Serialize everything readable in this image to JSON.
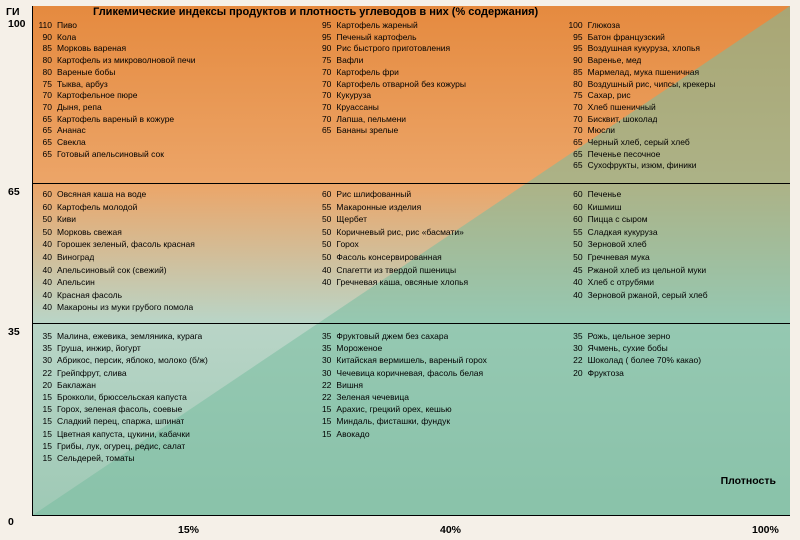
{
  "meta": {
    "title": "Гликемические индексы  продуктов и плотность углеводов   в них (% содержания)",
    "y_axis_label": "ГИ",
    "x_axis_label": "Плотность",
    "y_ticks": [
      {
        "v": "100",
        "top_pct": 0
      },
      {
        "v": "65",
        "top_pct": 34.8
      },
      {
        "v": "35",
        "top_pct": 62.3
      },
      {
        "v": "0",
        "top_pct": 100
      }
    ],
    "x_ticks": [
      {
        "v": "15%",
        "left_pct": 20
      },
      {
        "v": "40%",
        "left_pct": 55
      },
      {
        "v": "100%",
        "left_pct": 96
      }
    ],
    "hlines_pct": [
      34.8,
      62.3
    ],
    "colors": {
      "top_grad": [
        "#e58a3f",
        "#eca568"
      ],
      "mid_grad": [
        "#eca568",
        "#b9d5c7"
      ],
      "bot_grad": [
        "#b9d5c7",
        "#9ec9b5"
      ],
      "text": "#000000",
      "axis": "#000000",
      "diagonal_fill": "rgba(140,200,175,0.55)"
    },
    "fonts": {
      "title_pt": 11,
      "body_pt": 8.5,
      "axis_pt": 10.5,
      "family": "Arial"
    }
  },
  "columns": [
    {
      "a": [
        {
          "gi": "110",
          "nm": "Пиво"
        },
        {
          "gi": "90",
          "nm": "Кола"
        },
        {
          "gi": "85",
          "nm": "Морковь вареная"
        },
        {
          "gi": "80",
          "nm": "Картофель из микроволновой печи"
        },
        {
          "gi": "80",
          "nm": "Вареные бобы"
        },
        {
          "gi": "75",
          "nm": "Тыква, арбуз"
        },
        {
          "gi": "70",
          "nm": "Картофельное пюре"
        },
        {
          "gi": "70",
          "nm": "Дыня, репа"
        },
        {
          "gi": "65",
          "nm": "Картофель вареный в кожуре"
        },
        {
          "gi": "65",
          "nm": "Ананас"
        },
        {
          "gi": "65",
          "nm": "Свекла"
        },
        {
          "gi": "65",
          "nm": "Готовый апельсиновый сок"
        }
      ],
      "b": [
        {
          "gi": "60",
          "nm": "Овсяная каша на воде"
        },
        {
          "gi": "60",
          "nm": "Картофель молодой"
        },
        {
          "gi": "50",
          "nm": "Киви"
        },
        {
          "gi": "50",
          "nm": "Морковь свежая"
        },
        {
          "gi": "40",
          "nm": "Горошек зеленый, фасоль красная"
        },
        {
          "gi": "40",
          "nm": "Виноград"
        },
        {
          "gi": "40",
          "nm": "Апельсиновый сок (свежий)"
        },
        {
          "gi": "40",
          "nm": "Апельсин"
        },
        {
          "gi": "40",
          "nm": "Красная фасоль"
        },
        {
          "gi": "40",
          "nm": "Макароны из муки грубого помола"
        }
      ],
      "c": [
        {
          "gi": "35",
          "nm": "Малина, ежевика, земляника, курага"
        },
        {
          "gi": "35",
          "nm": "Груша, инжир, йогурт"
        },
        {
          "gi": "30",
          "nm": "Абрикос, персик, яблоко, молоко (б/ж)"
        },
        {
          "gi": "22",
          "nm": "Грейпфрут, слива"
        },
        {
          "gi": "20",
          "nm": "Баклажан"
        },
        {
          "gi": "15",
          "nm": "Брокколи, брюссельская капуста"
        },
        {
          "gi": "15",
          "nm": "Горох, зеленая фасоль, соевые"
        },
        {
          "gi": "15",
          "nm": "Сладкий перец, спаржа, шпинат"
        },
        {
          "gi": "15",
          "nm": "Цветная капуста, цукини, кабачки"
        },
        {
          "gi": "15",
          "nm": "Грибы, лук, огурец, редис, салат"
        },
        {
          "gi": "15",
          "nm": "Сельдерей, томаты"
        }
      ]
    },
    {
      "a": [
        {
          "gi": "",
          "nm": ""
        },
        {
          "gi": "95",
          "nm": "Картофель жареный"
        },
        {
          "gi": "95",
          "nm": "Печеный картофель"
        },
        {
          "gi": "90",
          "nm": "Рис быстрого приготовления"
        },
        {
          "gi": "",
          "nm": ""
        },
        {
          "gi": "75",
          "nm": "Вафли"
        },
        {
          "gi": "70",
          "nm": "Картофель фри"
        },
        {
          "gi": "70",
          "nm": "Картофель отварной без кожуры"
        },
        {
          "gi": "70",
          "nm": "Кукуруза"
        },
        {
          "gi": "70",
          "nm": "Круассаны"
        },
        {
          "gi": "70",
          "nm": "Лапша, пельмени"
        },
        {
          "gi": "65",
          "nm": "Бананы зрелые"
        }
      ],
      "b": [
        {
          "gi": "60",
          "nm": "Рис шлифованный"
        },
        {
          "gi": "",
          "nm": ""
        },
        {
          "gi": "55",
          "nm": "Макаронные изделия"
        },
        {
          "gi": "50",
          "nm": "Щербет"
        },
        {
          "gi": "50",
          "nm": "Коричневый рис, рис «басмати»"
        },
        {
          "gi": "50",
          "nm": "Горох"
        },
        {
          "gi": "50",
          "nm": "Фасоль консервированная"
        },
        {
          "gi": "40",
          "nm": "Спагетти из твердой пшеницы"
        },
        {
          "gi": "40",
          "nm": "Гречневая каша, овсяные хлопья"
        }
      ],
      "c": [
        {
          "gi": "35",
          "nm": "Фруктовый джем без сахара"
        },
        {
          "gi": "35",
          "nm": "Мороженое"
        },
        {
          "gi": "30",
          "nm": "Китайская вермишель, вареный горох"
        },
        {
          "gi": "30",
          "nm": "Чечевица коричневая, фасоль белая"
        },
        {
          "gi": "22",
          "nm": "Вишня"
        },
        {
          "gi": "22",
          "nm": "Зеленая чечевица"
        },
        {
          "gi": "",
          "nm": ""
        },
        {
          "gi": "15",
          "nm": "Арахис, грецкий орех, кешью"
        },
        {
          "gi": "15",
          "nm": "Миндаль, фисташки, фундук"
        },
        {
          "gi": "15",
          "nm": "Авокадо"
        }
      ]
    },
    {
      "a": [
        {
          "gi": "100",
          "nm": "Глюкоза"
        },
        {
          "gi": "95",
          "nm": "Батон французский"
        },
        {
          "gi": "95",
          "nm": "Воздушная кукуруза, хлопья"
        },
        {
          "gi": "90",
          "nm": "Варенье, мед"
        },
        {
          "gi": "85",
          "nm": "Мармелад, мука пшеничная"
        },
        {
          "gi": "80",
          "nm": "Воздушный рис, чипсы, крекеры"
        },
        {
          "gi": "75",
          "nm": "Сахар, рис"
        },
        {
          "gi": "70",
          "nm": "Хлеб пшеничный"
        },
        {
          "gi": "70",
          "nm": "Бисквит, шоколад"
        },
        {
          "gi": "70",
          "nm": "Мюсли"
        },
        {
          "gi": "65",
          "nm": "Черный хлеб, серый хлеб"
        },
        {
          "gi": "65",
          "nm": "Печенье песочное"
        },
        {
          "gi": "65",
          "nm": "Сухофрукты, изюм, финики"
        }
      ],
      "b": [
        {
          "gi": "60",
          "nm": "Печенье"
        },
        {
          "gi": "60",
          "nm": "Кишмиш"
        },
        {
          "gi": "60",
          "nm": "Пицца с сыром"
        },
        {
          "gi": "",
          "nm": ""
        },
        {
          "gi": "55",
          "nm": "Сладкая кукуруза"
        },
        {
          "gi": "50",
          "nm": "Зерновой хлеб"
        },
        {
          "gi": "50",
          "nm": "Гречневая мука"
        },
        {
          "gi": "45",
          "nm": "Ржаной хлеб из цельной муки"
        },
        {
          "gi": "40",
          "nm": "Хлеб с отрубями"
        },
        {
          "gi": "40",
          "nm": "Зерновой ржаной, серый хлеб"
        }
      ],
      "c": [
        {
          "gi": "35",
          "nm": "Рожь, цельное зерно"
        },
        {
          "gi": "",
          "nm": ""
        },
        {
          "gi": "30",
          "nm": "Ячмень, сухие бобы"
        },
        {
          "gi": "22",
          "nm": "Шоколад ( более 70% какао)"
        },
        {
          "gi": "20",
          "nm": "Фруктоза"
        }
      ]
    }
  ]
}
